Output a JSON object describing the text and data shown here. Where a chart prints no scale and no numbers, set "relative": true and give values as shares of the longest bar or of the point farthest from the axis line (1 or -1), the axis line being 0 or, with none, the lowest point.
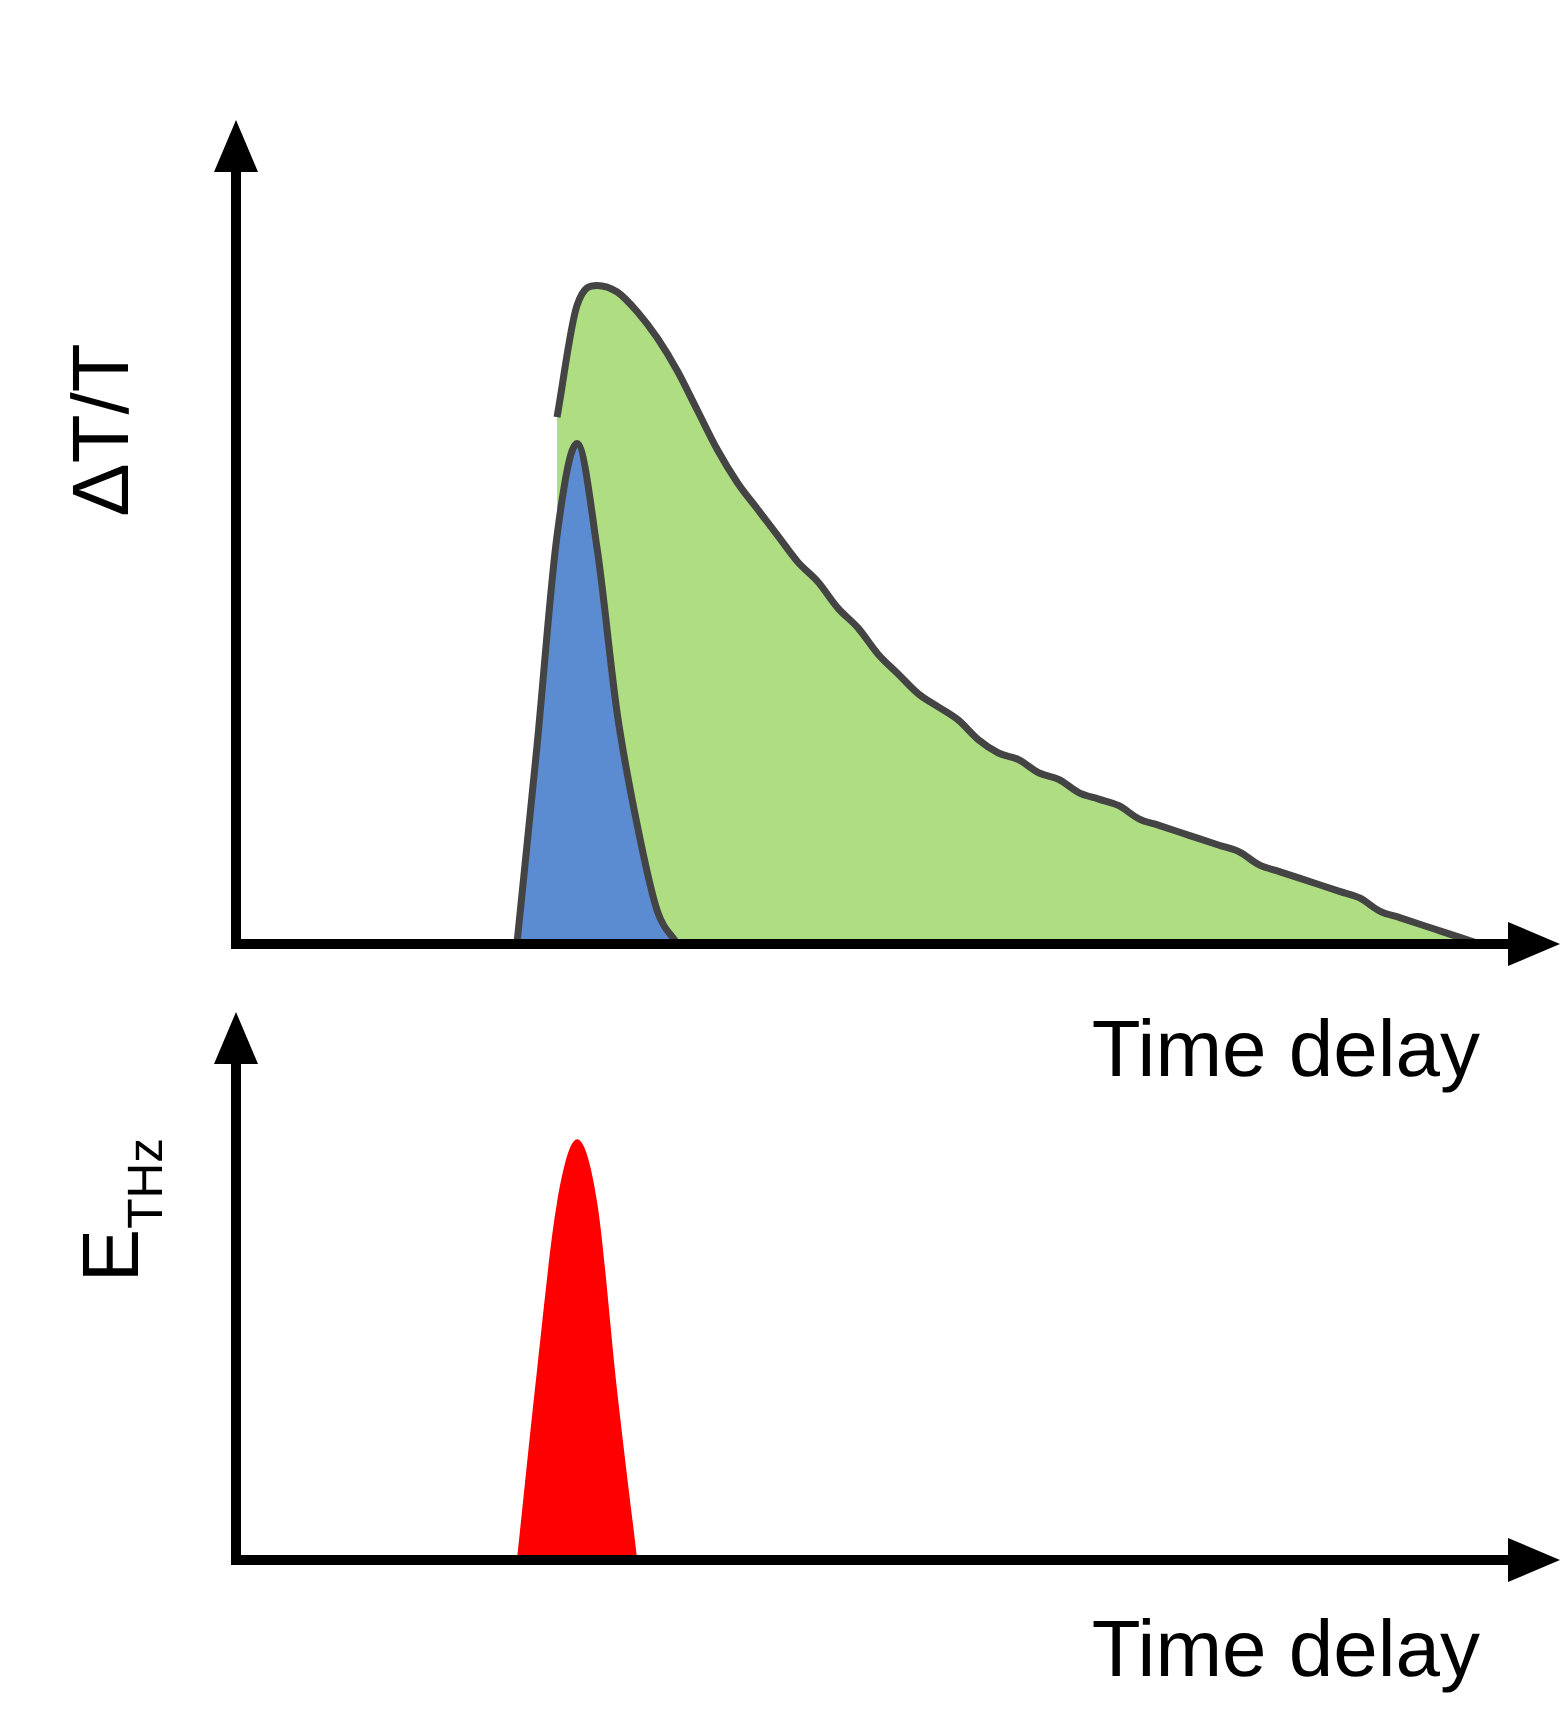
{
  "chart_data": [
    {
      "type": "area",
      "relative": true,
      "ylabel": "ΔT/T",
      "xlabel": "Time delay",
      "categories": [
        null,
        null,
        null,
        null,
        null,
        null,
        null,
        null,
        null,
        null,
        null,
        null,
        null,
        null,
        null,
        null,
        null,
        null,
        null,
        null,
        null,
        null,
        null,
        null,
        null,
        null,
        null,
        null,
        null,
        null,
        null,
        null,
        null,
        null,
        null,
        null,
        null,
        null,
        null,
        null,
        null,
        null,
        null,
        null,
        null,
        null,
        null,
        null,
        null,
        null,
        null,
        null,
        null,
        null,
        null,
        null,
        null,
        null,
        null,
        null,
        null,
        null,
        null
      ],
      "series": [
        {
          "color": "#aedd82",
          "values": [
            null,
            null,
            null,
            null,
            null,
            null,
            null,
            null,
            null,
            null,
            null,
            null,
            null,
            null,
            null,
            null,
            0.8,
            0.97,
            1,
            0.99,
            0.96,
            0.92,
            0.87,
            0.81,
            0.75,
            0.7,
            0.66,
            0.62,
            0.58,
            0.55,
            0.51,
            0.48,
            0.44,
            0.41,
            0.38,
            0.36,
            0.34,
            0.31,
            0.29,
            0.28,
            0.26,
            0.25,
            0.23,
            0.22,
            0.21,
            0.19,
            0.18,
            0.17,
            0.16,
            0.15,
            0.14,
            0.12,
            0.11,
            0.1,
            0.09,
            0.08,
            0.07,
            0.05,
            0.04,
            0.03,
            0.02,
            0.01,
            0
          ]
        },
        {
          "color": "#5b8bd0",
          "values": [
            null,
            null,
            null,
            null,
            null,
            null,
            null,
            null,
            null,
            null,
            null,
            null,
            null,
            null,
            0,
            0.3,
            0.62,
            0.76,
            0.6,
            0.35,
            0.18,
            0.05,
            0,
            null,
            null,
            null,
            null,
            null,
            null,
            null,
            null,
            null,
            null,
            null,
            null,
            null,
            null,
            null,
            null,
            null,
            null,
            null,
            null,
            null,
            null,
            null,
            null,
            null,
            null,
            null,
            null,
            null,
            null,
            null,
            null,
            null,
            null,
            null,
            null,
            null,
            null,
            null,
            null
          ]
        }
      ]
    },
    {
      "type": "area",
      "relative": true,
      "ylabel": "E$_{THz}$",
      "xlabel": "Time delay",
      "categories": [
        null,
        null,
        null,
        null,
        null,
        null,
        null,
        null,
        null,
        null,
        null,
        null,
        null,
        null,
        null,
        null,
        null,
        null,
        null,
        null,
        null,
        null,
        null,
        null,
        null,
        null,
        null,
        null,
        null,
        null,
        null,
        null,
        null,
        null,
        null,
        null,
        null,
        null,
        null,
        null,
        null,
        null,
        null,
        null,
        null,
        null,
        null,
        null,
        null,
        null,
        null,
        null,
        null,
        null,
        null,
        null,
        null,
        null,
        null,
        null,
        null,
        null,
        null
      ],
      "series": [
        {
          "color": "#ff0000",
          "values": [
            null,
            null,
            null,
            null,
            null,
            null,
            null,
            null,
            null,
            null,
            null,
            null,
            null,
            null,
            0,
            0.45,
            0.85,
            1,
            0.85,
            0.4,
            0,
            null,
            null,
            null,
            null,
            null,
            null,
            null,
            null,
            null,
            null,
            null,
            null,
            null,
            null,
            null,
            null,
            null,
            null,
            null,
            null,
            null,
            null,
            null,
            null,
            null,
            null,
            null,
            null,
            null,
            null,
            null,
            null,
            null,
            null,
            null,
            null,
            null,
            null,
            null,
            null,
            null,
            null
          ]
        }
      ]
    }
  ]
}
